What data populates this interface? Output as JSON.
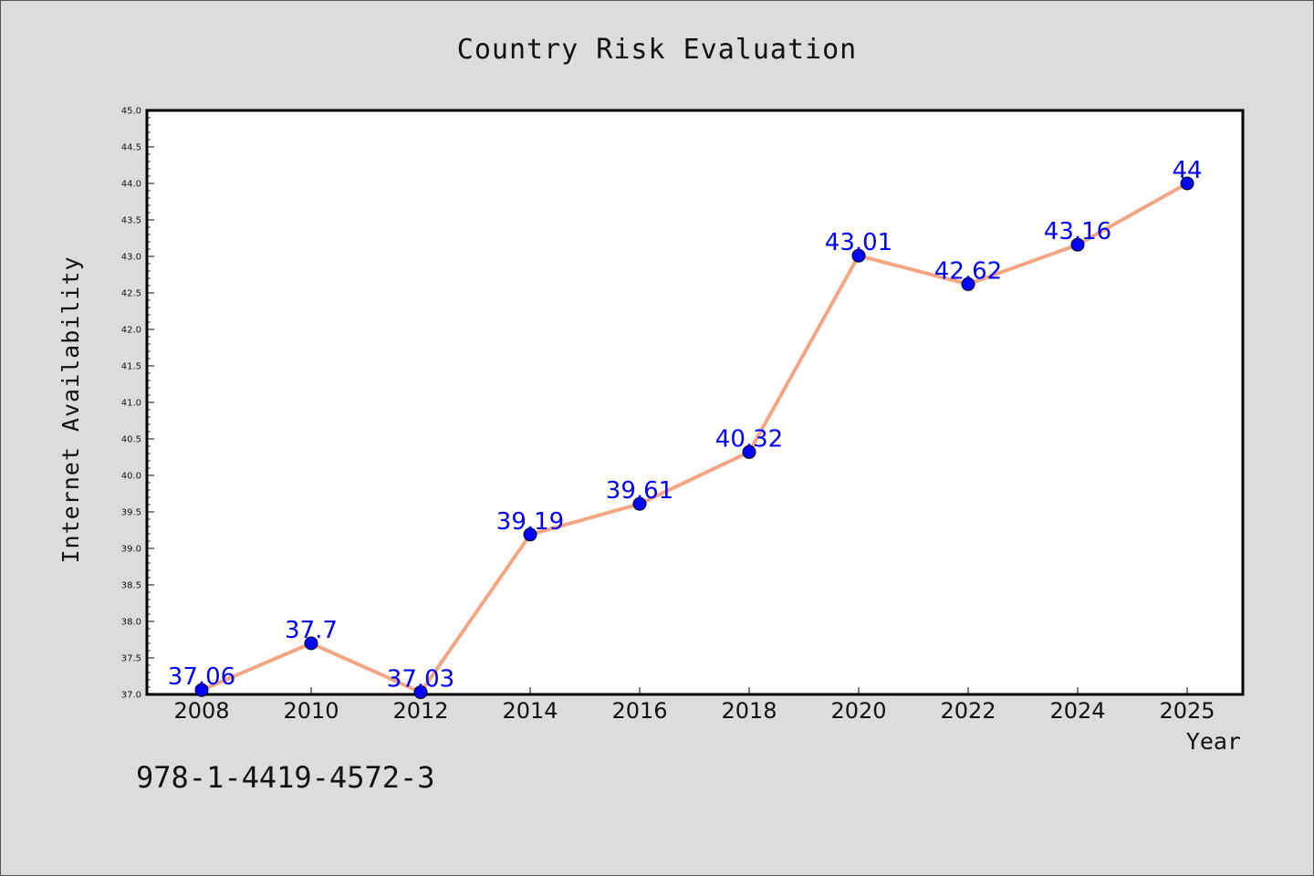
{
  "chart_data": {
    "type": "line",
    "title": "Country Risk Evaluation",
    "xlabel": "Year",
    "ylabel": "Internet Availability",
    "categories": [
      "2008",
      "2010",
      "2012",
      "2014",
      "2016",
      "2018",
      "2020",
      "2022",
      "2024",
      "2025"
    ],
    "series": [
      {
        "values": [
          37.06,
          37.7,
          37.03,
          39.19,
          39.61,
          40.32,
          43.01,
          42.62,
          43.16,
          44
        ],
        "labels": [
          "37.06",
          "37.7",
          "37.03",
          "39.19",
          "39.61",
          "40.32",
          "43.01",
          "42.62",
          "43.16",
          "44"
        ],
        "line_color": "#f4a582",
        "marker_color": "#0000ff"
      }
    ],
    "ylim": [
      37.0,
      45.0
    ],
    "yticks": [
      "37.0",
      "37.5",
      "38.0",
      "38.5",
      "39.0",
      "39.5",
      "40.0",
      "40.5",
      "41.0",
      "41.5",
      "42.0",
      "42.5",
      "43.0",
      "43.5",
      "44.0",
      "44.5",
      "45.0"
    ],
    "grid": false,
    "label_color": "#0000ff"
  },
  "footer": {
    "isbn": "978-1-4419-4572-3"
  }
}
